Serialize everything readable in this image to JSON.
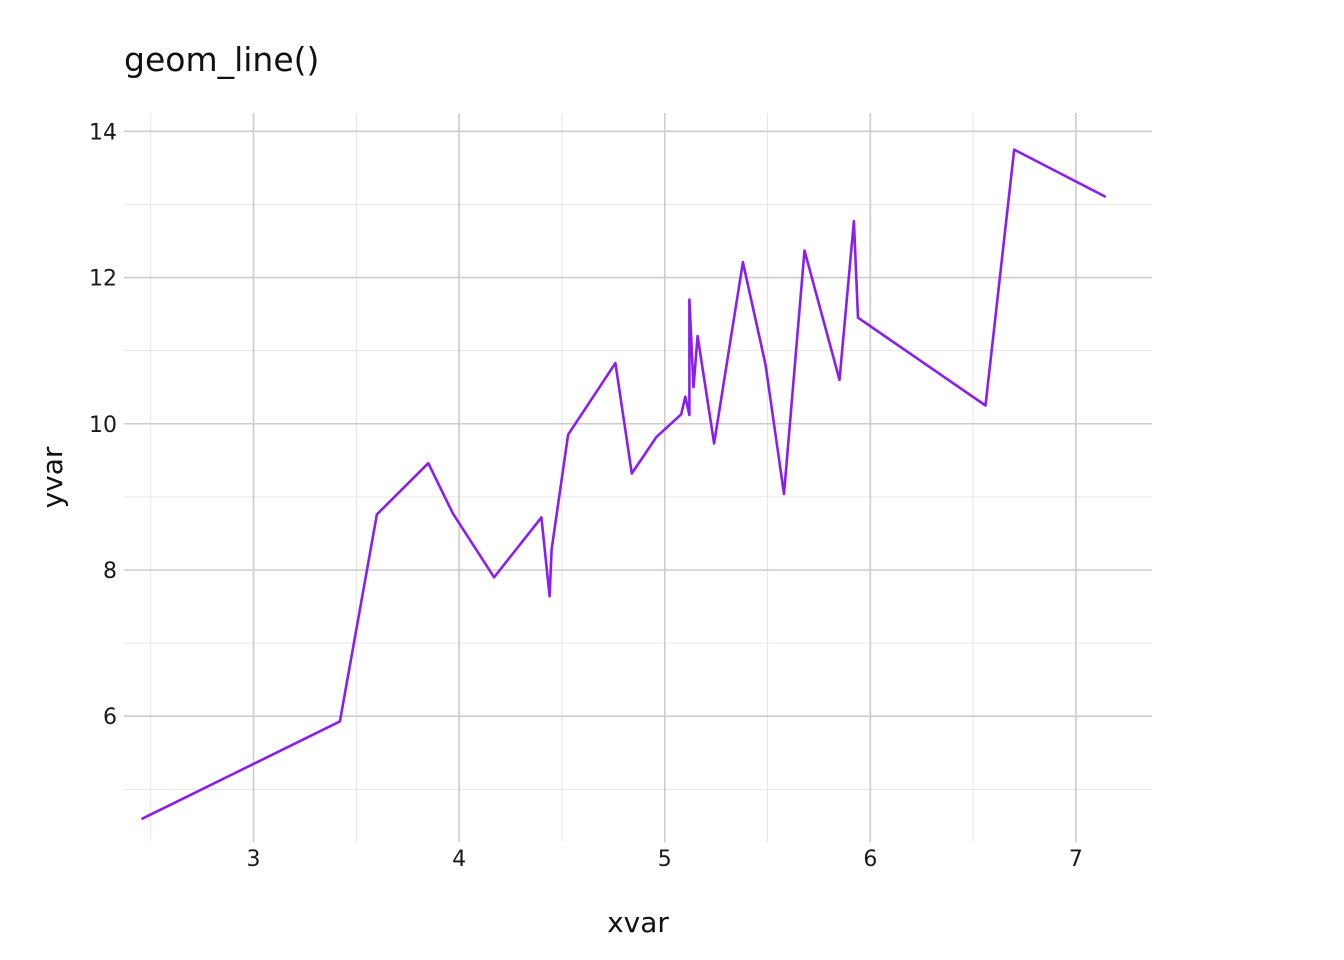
{
  "chart_data": {
    "type": "line",
    "title": "geom_line()",
    "xlabel": "xvar",
    "ylabel": "yvar",
    "xlim": [
      2.37,
      7.37
    ],
    "ylim": [
      4.28,
      14.25
    ],
    "x_ticks": [
      3,
      4,
      5,
      6,
      7
    ],
    "x_tick_labels": [
      "3",
      "4",
      "5",
      "6",
      "7"
    ],
    "y_ticks": [
      6,
      8,
      10,
      12,
      14
    ],
    "y_tick_labels": [
      "6",
      "8",
      "10",
      "12",
      "14"
    ],
    "x_minor": [
      2.5,
      3.5,
      4.5,
      5.5,
      6.5
    ],
    "y_minor": [
      5,
      7,
      9,
      11,
      13
    ],
    "grid": true,
    "legend": "none",
    "line_color": "#8a1ef0",
    "series": [
      {
        "x": [
          2.46,
          3.42,
          3.6,
          3.85,
          3.97,
          4.17,
          4.4,
          4.44,
          4.45,
          4.53,
          4.76,
          4.84,
          4.96,
          5.08,
          5.1,
          5.12,
          5.12,
          5.14,
          5.16,
          5.24,
          5.38,
          5.49,
          5.58,
          5.68,
          5.85,
          5.92,
          5.94,
          6.56,
          6.7,
          7.14
        ],
        "y": [
          4.6,
          5.93,
          8.76,
          9.46,
          8.77,
          7.9,
          8.72,
          7.64,
          8.28,
          9.85,
          10.83,
          9.32,
          9.82,
          10.13,
          10.37,
          10.12,
          11.7,
          10.5,
          11.2,
          9.73,
          12.21,
          10.81,
          9.04,
          12.37,
          10.6,
          12.77,
          11.45,
          10.25,
          13.75,
          13.11
        ]
      }
    ]
  }
}
